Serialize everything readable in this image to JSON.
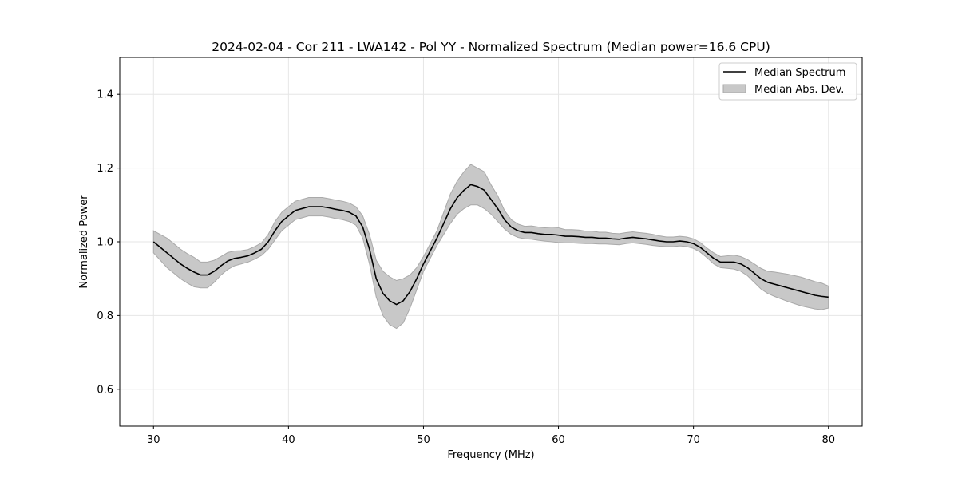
{
  "chart_data": {
    "type": "line",
    "title": "2024-02-04 - Cor 211 - LWA142 - Pol YY - Normalized Spectrum (Median power=16.6 CPU)",
    "xlabel": "Frequency (MHz)",
    "ylabel": "Normalized Power",
    "xlim": [
      27.5,
      82.5
    ],
    "ylim": [
      0.5,
      1.5
    ],
    "xticks": [
      30,
      40,
      50,
      60,
      70,
      80
    ],
    "xtick_labels": [
      "30",
      "40",
      "50",
      "60",
      "70",
      "80"
    ],
    "yticks": [
      0.6,
      0.8,
      1.0,
      1.2,
      1.4
    ],
    "ytick_labels": [
      "0.6",
      "0.8",
      "1.0",
      "1.2",
      "1.4"
    ],
    "grid": true,
    "legend": {
      "placement": "top-right",
      "entries": [
        "Median Spectrum",
        "Median Abs. Dev."
      ]
    },
    "colors": {
      "line": "#000000",
      "band_fill": "#c8c8c8",
      "band_edge": "#a9a9a9",
      "grid": "#e6e6e6"
    },
    "x": [
      30,
      30.5,
      31,
      31.5,
      32,
      32.5,
      33,
      33.5,
      34,
      34.5,
      35,
      35.5,
      36,
      36.5,
      37,
      37.5,
      38,
      38.5,
      39,
      39.5,
      40,
      40.5,
      41,
      41.5,
      42,
      42.5,
      43,
      43.5,
      44,
      44.5,
      45,
      45.5,
      46,
      46.5,
      47,
      47.5,
      48,
      48.5,
      49,
      49.5,
      50,
      50.5,
      51,
      51.5,
      52,
      52.5,
      53,
      53.5,
      54,
      54.5,
      55,
      55.5,
      56,
      56.5,
      57,
      57.5,
      58,
      58.5,
      59,
      59.5,
      60,
      60.5,
      61,
      61.5,
      62,
      62.5,
      63,
      63.5,
      64,
      64.5,
      65,
      65.5,
      66,
      66.5,
      67,
      67.5,
      68,
      68.5,
      69,
      69.5,
      70,
      70.5,
      71,
      71.5,
      72,
      72.5,
      73,
      73.5,
      74,
      74.5,
      75,
      75.5,
      76,
      76.5,
      77,
      77.5,
      78,
      78.5,
      79,
      79.5,
      80
    ],
    "series": [
      {
        "name": "Median Spectrum",
        "kind": "line",
        "values": [
          1.0,
          0.985,
          0.97,
          0.955,
          0.94,
          0.928,
          0.918,
          0.91,
          0.91,
          0.92,
          0.935,
          0.948,
          0.955,
          0.958,
          0.962,
          0.97,
          0.98,
          1.0,
          1.03,
          1.055,
          1.07,
          1.085,
          1.09,
          1.095,
          1.095,
          1.095,
          1.092,
          1.088,
          1.085,
          1.08,
          1.07,
          1.04,
          0.98,
          0.9,
          0.86,
          0.84,
          0.83,
          0.84,
          0.865,
          0.9,
          0.94,
          0.975,
          1.01,
          1.05,
          1.09,
          1.12,
          1.14,
          1.155,
          1.15,
          1.14,
          1.115,
          1.09,
          1.06,
          1.04,
          1.03,
          1.025,
          1.025,
          1.022,
          1.02,
          1.02,
          1.018,
          1.015,
          1.015,
          1.014,
          1.012,
          1.012,
          1.01,
          1.01,
          1.008,
          1.007,
          1.01,
          1.012,
          1.01,
          1.008,
          1.005,
          1.002,
          1.0,
          1.0,
          1.002,
          1.0,
          0.995,
          0.985,
          0.97,
          0.955,
          0.945,
          0.945,
          0.945,
          0.94,
          0.93,
          0.915,
          0.9,
          0.89,
          0.885,
          0.88,
          0.875,
          0.87,
          0.865,
          0.86,
          0.855,
          0.852,
          0.85
        ]
      },
      {
        "name": "Median Abs. Dev.",
        "kind": "band",
        "lower": [
          0.97,
          0.95,
          0.93,
          0.915,
          0.9,
          0.888,
          0.878,
          0.875,
          0.875,
          0.89,
          0.91,
          0.925,
          0.935,
          0.94,
          0.945,
          0.953,
          0.963,
          0.98,
          1.005,
          1.03,
          1.045,
          1.06,
          1.065,
          1.07,
          1.07,
          1.07,
          1.067,
          1.063,
          1.06,
          1.055,
          1.045,
          1.01,
          0.94,
          0.85,
          0.8,
          0.775,
          0.765,
          0.78,
          0.82,
          0.87,
          0.92,
          0.955,
          0.99,
          1.02,
          1.05,
          1.075,
          1.09,
          1.1,
          1.1,
          1.09,
          1.075,
          1.055,
          1.035,
          1.02,
          1.012,
          1.008,
          1.007,
          1.004,
          1.002,
          1.0,
          0.998,
          0.997,
          0.997,
          0.996,
          0.995,
          0.995,
          0.994,
          0.994,
          0.993,
          0.992,
          0.995,
          0.997,
          0.995,
          0.993,
          0.99,
          0.988,
          0.987,
          0.987,
          0.989,
          0.987,
          0.982,
          0.972,
          0.957,
          0.94,
          0.93,
          0.928,
          0.926,
          0.92,
          0.908,
          0.89,
          0.872,
          0.86,
          0.852,
          0.845,
          0.838,
          0.832,
          0.826,
          0.822,
          0.818,
          0.816,
          0.82
        ],
        "upper": [
          1.03,
          1.02,
          1.01,
          0.995,
          0.98,
          0.968,
          0.958,
          0.945,
          0.945,
          0.95,
          0.96,
          0.971,
          0.975,
          0.976,
          0.979,
          0.987,
          0.997,
          1.02,
          1.055,
          1.08,
          1.095,
          1.11,
          1.115,
          1.12,
          1.12,
          1.12,
          1.117,
          1.113,
          1.11,
          1.105,
          1.095,
          1.07,
          1.02,
          0.95,
          0.92,
          0.905,
          0.895,
          0.9,
          0.91,
          0.93,
          0.96,
          0.995,
          1.03,
          1.08,
          1.13,
          1.165,
          1.19,
          1.21,
          1.2,
          1.19,
          1.155,
          1.125,
          1.085,
          1.06,
          1.048,
          1.042,
          1.043,
          1.04,
          1.038,
          1.04,
          1.038,
          1.033,
          1.033,
          1.032,
          1.029,
          1.029,
          1.026,
          1.026,
          1.023,
          1.022,
          1.025,
          1.027,
          1.025,
          1.023,
          1.02,
          1.016,
          1.013,
          1.013,
          1.015,
          1.013,
          1.008,
          0.998,
          0.983,
          0.97,
          0.96,
          0.962,
          0.964,
          0.96,
          0.952,
          0.94,
          0.928,
          0.92,
          0.918,
          0.915,
          0.912,
          0.908,
          0.904,
          0.898,
          0.892,
          0.888,
          0.88
        ]
      }
    ]
  }
}
